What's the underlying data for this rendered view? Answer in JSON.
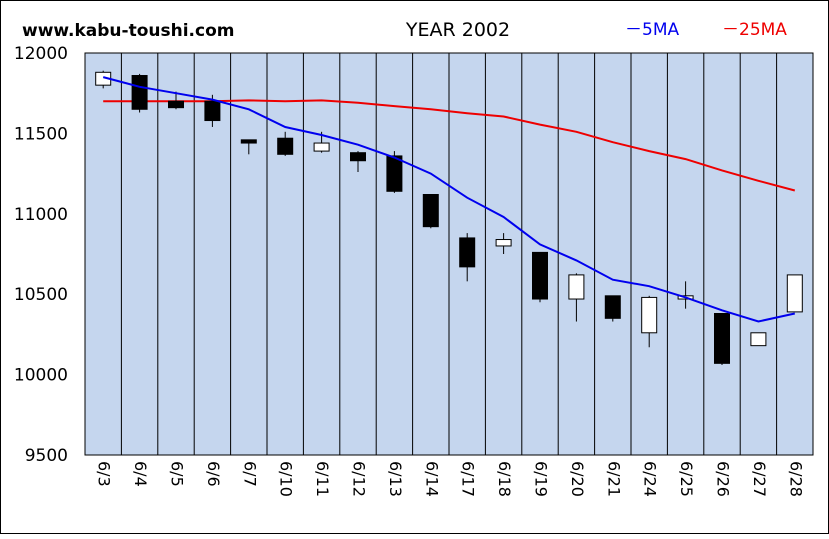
{
  "header": {
    "site": "www.kabu-toushi.com",
    "title": "YEAR 2002",
    "legend_5ma": "－5MA",
    "legend_25ma": "－25MA"
  },
  "colors": {
    "background": "#ffffff",
    "plot_background": "#c5d6ee",
    "ma5": "#0000ee",
    "ma25": "#ee0000",
    "up_candle": "#ffffff",
    "down_candle": "#000000",
    "grid": "#000000"
  },
  "chart_data": {
    "type": "candlestick",
    "title": "YEAR 2002",
    "categories": [
      "6/3",
      "6/4",
      "6/5",
      "6/6",
      "6/7",
      "6/10",
      "6/11",
      "6/12",
      "6/13",
      "6/14",
      "6/17",
      "6/18",
      "6/19",
      "6/20",
      "6/21",
      "6/24",
      "6/25",
      "6/26",
      "6/27",
      "6/28"
    ],
    "ylim": [
      9500,
      12000
    ],
    "yticks": [
      9500,
      10000,
      10500,
      11000,
      11500,
      12000
    ],
    "grid": "vertical",
    "legend": "top-right",
    "candles": [
      {
        "open": 11800,
        "close": 11880,
        "high": 11890,
        "low": 11780
      },
      {
        "open": 11860,
        "close": 11650,
        "high": 11870,
        "low": 11630
      },
      {
        "open": 11700,
        "close": 11660,
        "high": 11760,
        "low": 11650
      },
      {
        "open": 11700,
        "close": 11580,
        "high": 11740,
        "low": 11540
      },
      {
        "open": 11460,
        "close": 11440,
        "high": 11460,
        "low": 11370
      },
      {
        "open": 11470,
        "close": 11370,
        "high": 11510,
        "low": 11360
      },
      {
        "open": 11390,
        "close": 11440,
        "high": 11510,
        "low": 11380
      },
      {
        "open": 11380,
        "close": 11330,
        "high": 11390,
        "low": 11260
      },
      {
        "open": 11360,
        "close": 11140,
        "high": 11390,
        "low": 11130
      },
      {
        "open": 11120,
        "close": 10920,
        "high": 11120,
        "low": 10910
      },
      {
        "open": 10850,
        "close": 10670,
        "high": 10880,
        "low": 10580
      },
      {
        "open": 10800,
        "close": 10840,
        "high": 10880,
        "low": 10750
      },
      {
        "open": 10760,
        "close": 10470,
        "high": 10760,
        "low": 10450
      },
      {
        "open": 10470,
        "close": 10620,
        "high": 10630,
        "low": 10330
      },
      {
        "open": 10490,
        "close": 10350,
        "high": 10490,
        "low": 10330
      },
      {
        "open": 10260,
        "close": 10480,
        "high": 10490,
        "low": 10170
      },
      {
        "open": 10470,
        "close": 10490,
        "high": 10580,
        "low": 10410
      },
      {
        "open": 10380,
        "close": 10070,
        "high": 10380,
        "low": 10060
      },
      {
        "open": 10180,
        "close": 10260,
        "high": 10260,
        "low": 10180
      },
      {
        "open": 10390,
        "close": 10620,
        "high": 10620,
        "low": 10390
      }
    ],
    "series": [
      {
        "name": "5MA",
        "values": [
          11850,
          11790,
          11750,
          11710,
          11650,
          11540,
          11490,
          11430,
          11350,
          11250,
          11100,
          10980,
          10810,
          10710,
          10590,
          10550,
          10480,
          10400,
          10330,
          10380
        ]
      },
      {
        "name": "25MA",
        "values": [
          11700,
          11700,
          11700,
          11700,
          11705,
          11700,
          11705,
          11690,
          11670,
          11650,
          11625,
          11605,
          11555,
          11510,
          11445,
          11390,
          11340,
          11270,
          11205,
          11145
        ]
      }
    ]
  }
}
